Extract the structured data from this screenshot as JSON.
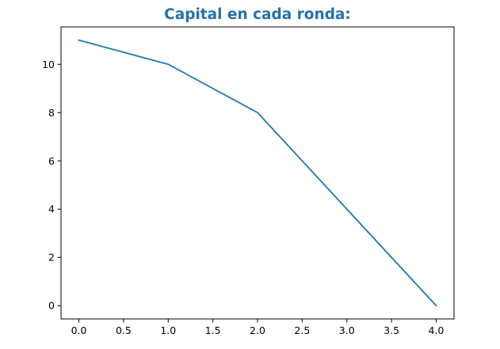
{
  "chart_data": {
    "type": "line",
    "title": "Capital en cada ronda:",
    "xlabel": "",
    "ylabel": "",
    "x": [
      0,
      1,
      2,
      3,
      4
    ],
    "series": [
      {
        "values": [
          11,
          10,
          8,
          4,
          0
        ]
      }
    ],
    "xlim": [
      -0.2,
      4.2
    ],
    "ylim": [
      -0.55,
      11.55
    ],
    "xticks": [
      0.0,
      0.5,
      1.0,
      1.5,
      2.0,
      2.5,
      3.0,
      3.5,
      4.0
    ],
    "xtick_labels": [
      "0.0",
      "0.5",
      "1.0",
      "1.5",
      "2.0",
      "2.5",
      "3.0",
      "3.5",
      "4.0"
    ],
    "yticks": [
      0,
      2,
      4,
      6,
      8,
      10
    ],
    "ytick_labels": [
      "0",
      "2",
      "4",
      "6",
      "8",
      "10"
    ],
    "grid": false,
    "legend": "none"
  },
  "colors": {
    "title": "#2471b0",
    "line": "#1f77b4",
    "axes": "#000000",
    "background": "#ffffff"
  }
}
